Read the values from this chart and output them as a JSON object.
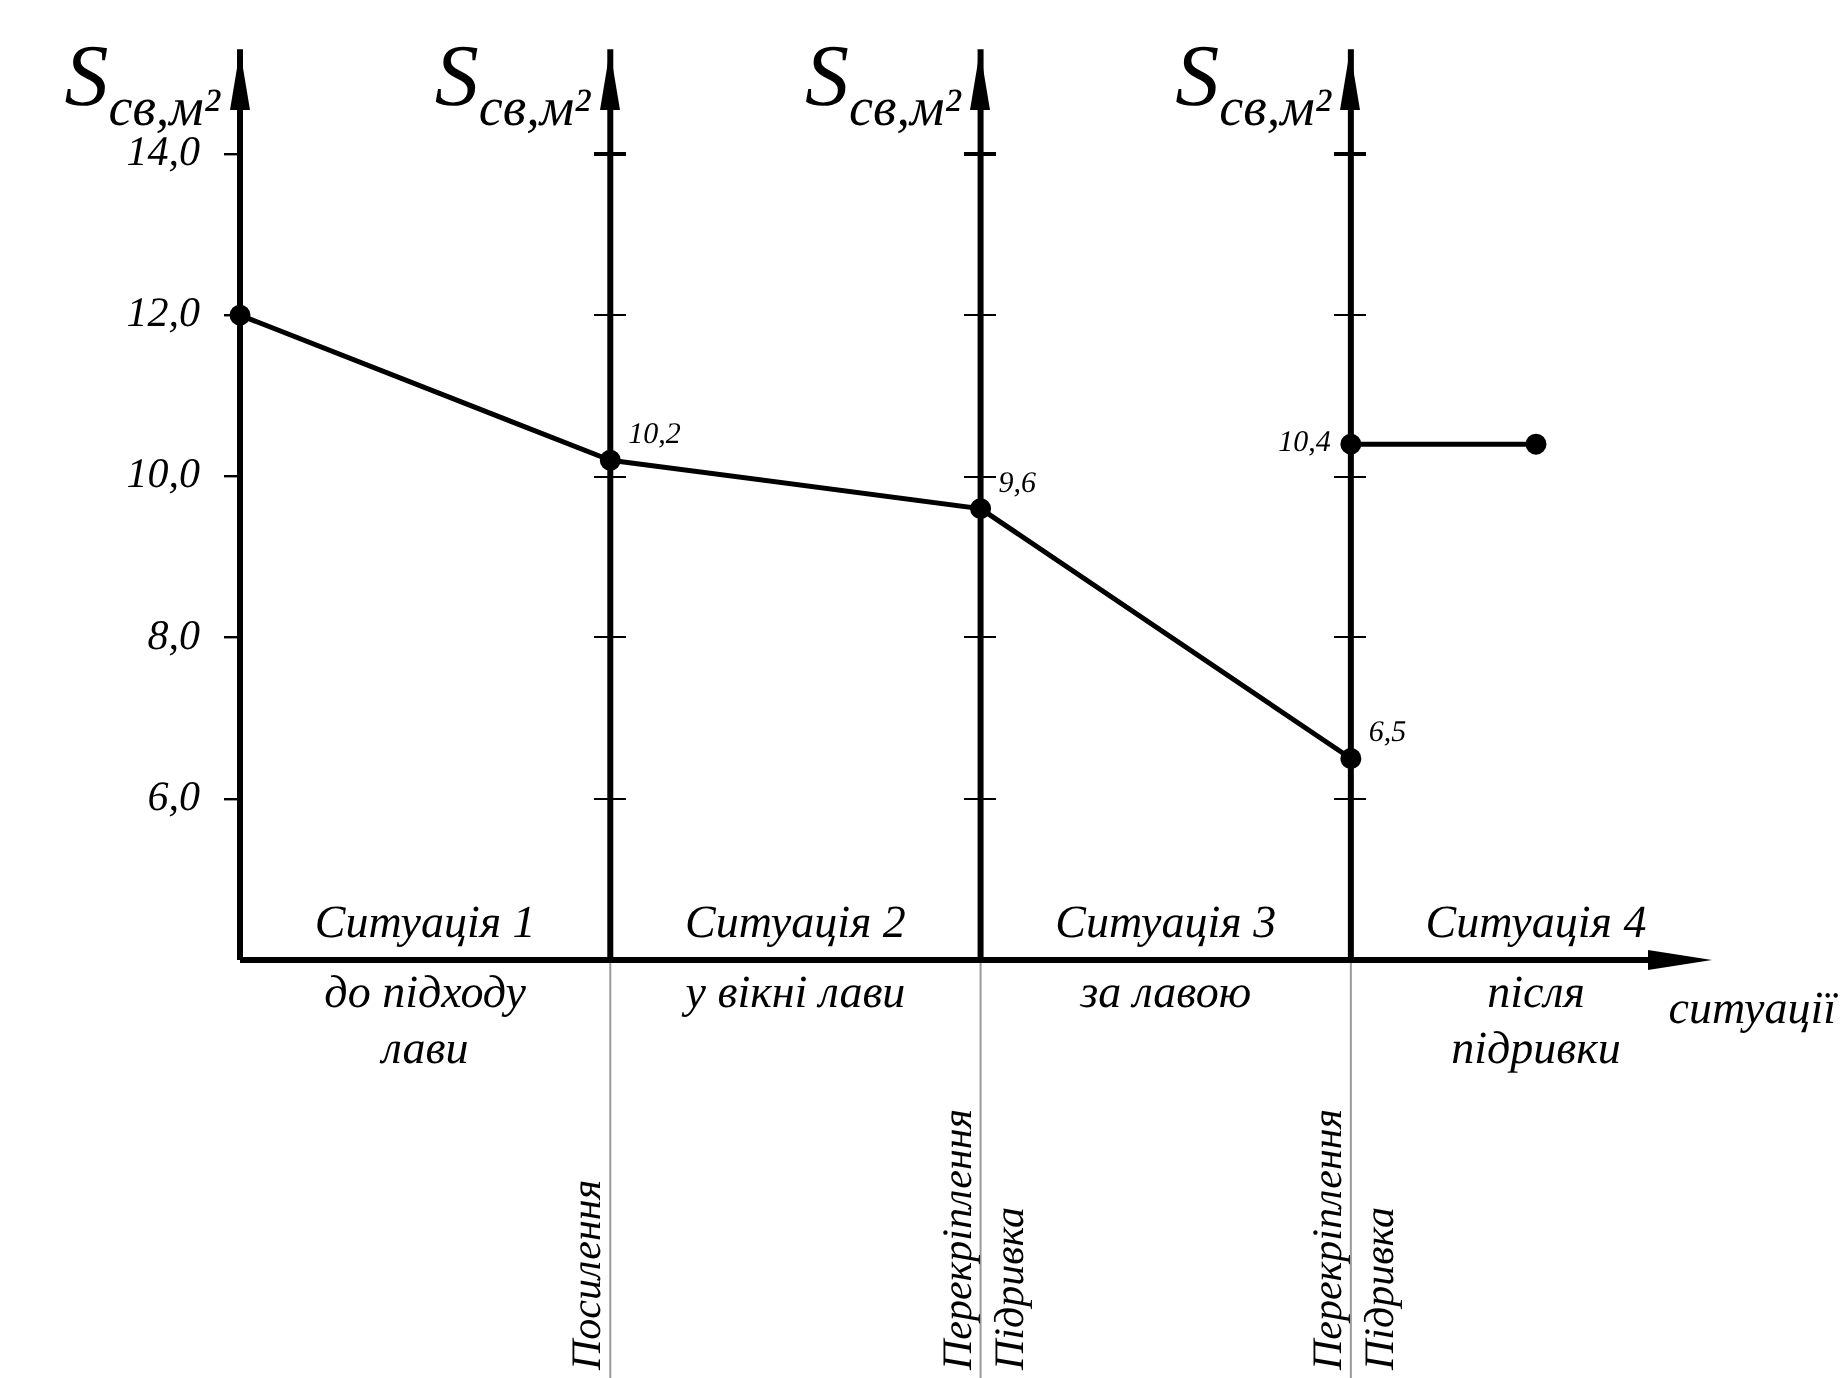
{
  "chart_data": {
    "type": "line",
    "ylabel": "S$_{св,м²}$",
    "xlabel": "ситуації",
    "ylim": [
      4,
      15.3
    ],
    "categories": [
      null,
      "Ситуація 1",
      null,
      "Ситуація 2",
      null,
      "Ситуація 3",
      null,
      "Ситуація 4"
    ],
    "yticks": [
      {
        "value": 6,
        "label": "6,0"
      },
      {
        "value": 8,
        "label": "8,0"
      },
      {
        "value": 10,
        "label": "10,0"
      },
      {
        "value": 12,
        "label": "12,0"
      },
      {
        "value": 14,
        "label": "14,0"
      }
    ],
    "grid": false,
    "legend": false,
    "marker": "circle",
    "line_style": "solid",
    "series": [
      {
        "color": "#000000",
        "values": [
          12,
          null,
          10.2,
          null,
          9.6,
          null,
          6.5,
          null
        ],
        "value_labels": [
          null,
          null,
          "10,2",
          null,
          "9,6",
          null,
          "6,5",
          null
        ]
      },
      {
        "color": "#000000",
        "values": [
          null,
          null,
          null,
          null,
          null,
          null,
          10.4,
          10.4
        ],
        "value_labels": [
          null,
          null,
          null,
          null,
          null,
          null,
          "10,4",
          null
        ]
      }
    ],
    "annotations": [
      "до підходу\nлави",
      "у вікні лави",
      "за лавою",
      "після\nпідривки",
      "Посилення",
      "Перекріплення",
      "Підривка",
      "Перекріплення",
      "Підривка"
    ]
  }
}
